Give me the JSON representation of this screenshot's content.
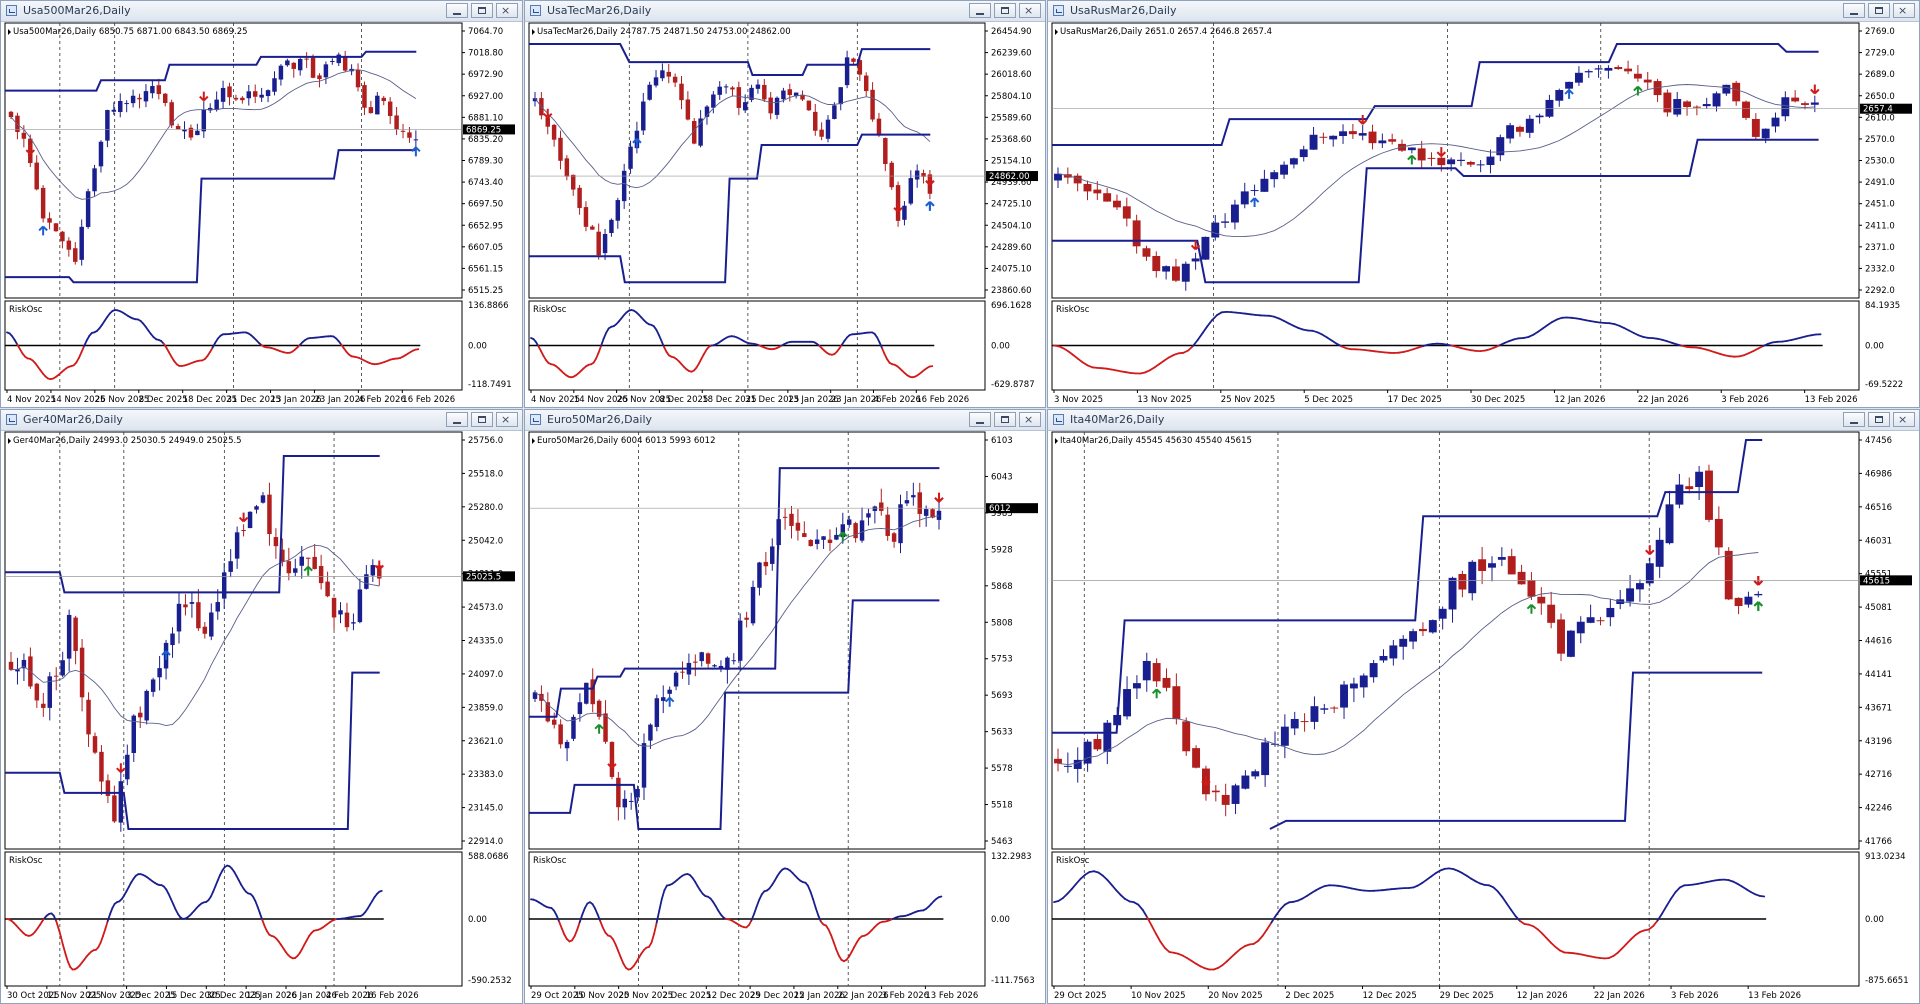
{
  "colors": {
    "bull": "#1a1f8f",
    "bear": "#b01e1e",
    "channel": "#1a1f8f",
    "ma": "#5a5f8a",
    "osc_high": "#1a1f8f",
    "osc_low": "#d11a1a",
    "arrow_up": "#1b5fd1",
    "arrow_up_green": "#1a8f2e",
    "arrow_down": "#d11a1a"
  },
  "icons": [
    "chart-window-icon",
    "minimize-icon",
    "maximize-icon",
    "close-icon"
  ],
  "charts": [
    {
      "window_title": "Usa500Mar26,Daily",
      "info_line": "Usa500Mar26,Daily  6850.75 6871.00 6843.50 6869.25",
      "price_labels": [
        "7064.70",
        "7018.80",
        "6972.90",
        "6927.00",
        "6881.10",
        "6835.20",
        "6789.30",
        "6743.40",
        "6697.50",
        "6652.95",
        "6607.05",
        "6561.15",
        "6515.25"
      ],
      "current_price": "6869.25",
      "osc_label": "RiskOsc",
      "osc_labels": [
        "136.8866",
        "0.00",
        "-118.7491"
      ],
      "dates": [
        "4 Nov 2025",
        "14 Nov 2025",
        "26 Nov 2025",
        "8 Dec 2025",
        "18 Dec 2025",
        "31 Dec 2025",
        "13 Jan 2026",
        "23 Jan 2026",
        "4 Feb 2026",
        "16 Feb 2026"
      ],
      "seed": 11,
      "path": [
        0.68,
        0.55,
        0.3,
        0.18,
        0.1,
        0.45,
        0.68,
        0.75,
        0.73,
        0.78,
        0.62,
        0.58,
        0.7,
        0.78,
        0.72,
        0.76,
        0.8,
        0.86,
        0.88,
        0.83,
        0.89,
        0.86,
        0.66,
        0.76,
        0.58,
        0.6
      ],
      "ch_upper": [
        [
          0,
          0.77
        ],
        [
          0.05,
          0.77
        ],
        [
          0.2,
          0.77
        ],
        [
          0.21,
          0.81
        ],
        [
          0.35,
          0.81
        ],
        [
          0.36,
          0.87
        ],
        [
          0.55,
          0.87
        ],
        [
          0.56,
          0.9
        ],
        [
          0.78,
          0.9
        ],
        [
          0.79,
          0.92
        ],
        [
          0.9,
          0.92
        ]
      ],
      "ch_lower": [
        [
          0,
          0.05
        ],
        [
          0.14,
          0.05
        ],
        [
          0.15,
          0.03
        ],
        [
          0.42,
          0.03
        ],
        [
          0.43,
          0.43
        ],
        [
          0.72,
          0.43
        ],
        [
          0.73,
          0.54
        ],
        [
          0.9,
          0.54
        ]
      ],
      "dashes": [
        0.12,
        0.24,
        0.5,
        0.78
      ],
      "hline": 0.62,
      "osc": [
        0.35,
        -0.35,
        -0.9,
        -0.55,
        0.35,
        0.95,
        0.7,
        0.15,
        -0.55,
        -0.4,
        0.3,
        0.35,
        -0.05,
        -0.2,
        0.2,
        0.25,
        -0.3,
        -0.5,
        -0.35,
        -0.1
      ],
      "arrows": [
        {
          "i": 5,
          "dir": "up"
        },
        {
          "i": 30,
          "dir": "down"
        },
        {
          "i": 79,
          "dir": "up"
        },
        {
          "i": 3,
          "dir": "down"
        }
      ]
    },
    {
      "window_title": "UsaTecMar26,Daily",
      "info_line": "UsaTecMar26,Daily  24787.75 24871.50 24753.00 24862.00",
      "price_labels": [
        "26454.90",
        "26239.60",
        "26018.60",
        "25804.10",
        "25589.60",
        "25368.60",
        "25154.10",
        "24939.60",
        "24725.10",
        "24504.10",
        "24289.60",
        "24075.10",
        "23860.60"
      ],
      "current_price": "24862.00",
      "osc_label": "RiskOsc",
      "osc_labels": [
        "696.1628",
        "0.00",
        "-629.8787"
      ],
      "dates": [
        "4 Nov 2025",
        "14 Nov 2025",
        "26 Nov 2025",
        "8 Dec 2025",
        "18 Dec 2025",
        "31 Dec 2025",
        "13 Jan 2026",
        "23 Jan 2026",
        "4 Feb 2026",
        "16 Feb 2026"
      ],
      "seed": 23,
      "path": [
        0.72,
        0.6,
        0.45,
        0.3,
        0.15,
        0.28,
        0.55,
        0.75,
        0.86,
        0.8,
        0.55,
        0.75,
        0.78,
        0.72,
        0.8,
        0.7,
        0.78,
        0.76,
        0.6,
        0.72,
        0.92,
        0.75,
        0.55,
        0.25,
        0.45,
        0.4
      ],
      "ch_upper": [
        [
          0,
          0.95
        ],
        [
          0.2,
          0.95
        ],
        [
          0.22,
          0.88
        ],
        [
          0.48,
          0.88
        ],
        [
          0.49,
          0.83
        ],
        [
          0.6,
          0.83
        ],
        [
          0.61,
          0.87
        ],
        [
          0.72,
          0.87
        ],
        [
          0.73,
          0.93
        ],
        [
          0.88,
          0.93
        ]
      ],
      "ch_lower": [
        [
          0,
          0.13
        ],
        [
          0.2,
          0.13
        ],
        [
          0.21,
          0.03
        ],
        [
          0.43,
          0.03
        ],
        [
          0.44,
          0.43
        ],
        [
          0.5,
          0.43
        ],
        [
          0.51,
          0.56
        ],
        [
          0.72,
          0.56
        ],
        [
          0.73,
          0.6
        ],
        [
          0.88,
          0.6
        ]
      ],
      "dashes": [
        0.22,
        0.48,
        0.72
      ],
      "hline": 0.44,
      "osc": [
        0.2,
        -0.5,
        -0.85,
        -0.5,
        0.5,
        0.95,
        0.55,
        -0.3,
        -0.7,
        0.0,
        0.25,
        0.05,
        -0.1,
        0.1,
        0.1,
        -0.25,
        0.3,
        0.35,
        -0.5,
        -0.85,
        -0.55
      ],
      "arrows": [
        {
          "i": 2,
          "dir": "down"
        },
        {
          "i": 16,
          "dir": "up"
        },
        {
          "i": 57,
          "dir": "down"
        },
        {
          "i": 70,
          "dir": "up"
        },
        {
          "i": 80,
          "dir": "down"
        },
        {
          "i": 82,
          "dir": "up"
        },
        {
          "i": 90,
          "dir": "down"
        }
      ]
    },
    {
      "window_title": "UsaRusMar26,Daily",
      "info_line": "UsaRusMar26,Daily  2651.0 2657.4 2646.8 2657.4",
      "price_labels": [
        "2769.0",
        "2729.0",
        "2689.0",
        "2650.0",
        "2610.0",
        "2570.0",
        "2530.0",
        "2491.0",
        "2451.0",
        "2411.0",
        "2371.0",
        "2332.0",
        "2292.0"
      ],
      "current_price": "2657.4",
      "osc_label": "RiskOsc",
      "osc_labels": [
        "84.1935",
        "0.00",
        "-69.5222"
      ],
      "dates": [
        "3 Nov 2025",
        "13 Nov 2025",
        "25 Nov 2025",
        "5 Dec 2025",
        "17 Dec 2025",
        "30 Dec 2025",
        "12 Jan 2026",
        "22 Jan 2026",
        "3 Feb 2026",
        "13 Feb 2026"
      ],
      "seed": 37,
      "path": [
        0.42,
        0.38,
        0.3,
        0.12,
        0.05,
        0.22,
        0.35,
        0.45,
        0.55,
        0.62,
        0.6,
        0.58,
        0.52,
        0.5,
        0.5,
        0.62,
        0.7,
        0.8,
        0.88,
        0.84,
        0.7,
        0.72,
        0.78,
        0.6,
        0.73,
        0.75
      ],
      "ch_upper": [
        [
          0,
          0.56
        ],
        [
          0.21,
          0.56
        ],
        [
          0.22,
          0.66
        ],
        [
          0.39,
          0.66
        ],
        [
          0.4,
          0.71
        ],
        [
          0.52,
          0.71
        ],
        [
          0.53,
          0.88
        ],
        [
          0.69,
          0.88
        ],
        [
          0.7,
          0.95
        ],
        [
          0.9,
          0.95
        ],
        [
          0.91,
          0.92
        ],
        [
          0.95,
          0.92
        ]
      ],
      "ch_lower": [
        [
          0,
          0.19
        ],
        [
          0.18,
          0.19
        ],
        [
          0.19,
          0.03
        ],
        [
          0.38,
          0.03
        ],
        [
          0.39,
          0.47
        ],
        [
          0.5,
          0.47
        ],
        [
          0.51,
          0.44
        ],
        [
          0.79,
          0.44
        ],
        [
          0.8,
          0.58
        ],
        [
          0.95,
          0.58
        ]
      ],
      "dashes": [
        0.2,
        0.49,
        0.68
      ],
      "hline": 0.7,
      "osc": [
        0.0,
        -0.6,
        -0.75,
        -0.2,
        0.9,
        0.8,
        0.4,
        -0.1,
        -0.2,
        0.05,
        -0.15,
        0.2,
        0.75,
        0.6,
        0.2,
        -0.05,
        -0.3,
        0.1,
        0.3
      ],
      "arrows": [
        {
          "i": 14,
          "dir": "down"
        },
        {
          "i": 20,
          "dir": "up"
        },
        {
          "i": 31,
          "dir": "down"
        },
        {
          "i": 36,
          "dir": "up_green"
        },
        {
          "i": 39,
          "dir": "down"
        },
        {
          "i": 52,
          "dir": "up"
        },
        {
          "i": 59,
          "dir": "up_green"
        },
        {
          "i": 80,
          "dir": "down"
        }
      ]
    },
    {
      "window_title": "Ger40Mar26,Daily",
      "info_line": "Ger40Mar26,Daily  24993.0 25030.5 24949.0 25025.5",
      "price_labels": [
        "25756.0",
        "25518.0",
        "25280.0",
        "25042.0",
        "24811.0",
        "24573.0",
        "24335.0",
        "24097.0",
        "23859.0",
        "23621.0",
        "23383.0",
        "23145.0",
        "22914.0"
      ],
      "current_price": "25025.5",
      "osc_label": "RiskOsc",
      "osc_labels": [
        "588.0686",
        "0.00",
        "-590.2532"
      ],
      "dates": [
        "30 Oct 2025",
        "11 Nov 2025",
        "21 Nov 2025",
        "3 Dec 2025",
        "15 Dec 2025",
        "30 Dec 2025",
        "13 Jan 2026",
        "26 Jan 2026",
        "4 Feb 2026",
        "16 Feb 2026"
      ],
      "seed": 51,
      "path": [
        0.45,
        0.42,
        0.35,
        0.4,
        0.55,
        0.3,
        0.15,
        0.05,
        0.25,
        0.35,
        0.45,
        0.55,
        0.6,
        0.52,
        0.62,
        0.72,
        0.82,
        0.88,
        0.72,
        0.68,
        0.72,
        0.65,
        0.58,
        0.5,
        0.68,
        0.68
      ],
      "ch_upper": [
        [
          0,
          0.67
        ],
        [
          0.12,
          0.67
        ],
        [
          0.13,
          0.62
        ],
        [
          0.6,
          0.62
        ],
        [
          0.61,
          0.96
        ],
        [
          0.82,
          0.96
        ]
      ],
      "ch_lower": [
        [
          0,
          0.17
        ],
        [
          0.12,
          0.17
        ],
        [
          0.13,
          0.12
        ],
        [
          0.26,
          0.12
        ],
        [
          0.27,
          0.03
        ],
        [
          0.75,
          0.03
        ],
        [
          0.76,
          0.42
        ],
        [
          0.82,
          0.42
        ]
      ],
      "dashes": [
        0.12,
        0.26,
        0.48,
        0.72
      ],
      "hline": 0.66,
      "osc": [
        0.0,
        -0.3,
        0.1,
        -0.9,
        -0.55,
        0.3,
        0.8,
        0.6,
        0.0,
        0.3,
        0.95,
        0.45,
        -0.3,
        -0.7,
        -0.2,
        0.0,
        0.05,
        0.5
      ],
      "arrows": [
        {
          "i": 17,
          "dir": "down"
        },
        {
          "i": 24,
          "dir": "up"
        },
        {
          "i": 36,
          "dir": "down"
        },
        {
          "i": 46,
          "dir": "up_green"
        },
        {
          "i": 60,
          "dir": "down"
        }
      ]
    },
    {
      "window_title": "Euro50Mar26,Daily",
      "info_line": "Euro50Mar26,Daily  6004 6013 5993 6012",
      "price_labels": [
        "6103",
        "6043",
        "5983",
        "5928",
        "5868",
        "5808",
        "5753",
        "5693",
        "5633",
        "5578",
        "5518",
        "5463"
      ],
      "current_price": "6012",
      "osc_label": "RiskOsc",
      "osc_labels": [
        "132.2983",
        "0.00",
        "-111.7563"
      ],
      "dates": [
        "29 Oct 2025",
        "10 Nov 2025",
        "20 Nov 2025",
        "2 Dec 2025",
        "12 Dec 2025",
        "29 Dec 2025",
        "12 Jan 2026",
        "22 Jan 2026",
        "3 Feb 2026",
        "13 Feb 2026"
      ],
      "seed": 67,
      "path": [
        0.35,
        0.3,
        0.25,
        0.4,
        0.28,
        0.12,
        0.08,
        0.3,
        0.38,
        0.42,
        0.44,
        0.46,
        0.45,
        0.55,
        0.68,
        0.78,
        0.82,
        0.72,
        0.76,
        0.8,
        0.78,
        0.86,
        0.74,
        0.88,
        0.83,
        0.82
      ],
      "ch_upper": [
        [
          0,
          0.31
        ],
        [
          0.06,
          0.31
        ],
        [
          0.07,
          0.38
        ],
        [
          0.14,
          0.38
        ],
        [
          0.15,
          0.41
        ],
        [
          0.2,
          0.41
        ],
        [
          0.21,
          0.43
        ],
        [
          0.54,
          0.43
        ],
        [
          0.55,
          0.93
        ],
        [
          0.9,
          0.93
        ]
      ],
      "ch_lower": [
        [
          0,
          0.07
        ],
        [
          0.09,
          0.07
        ],
        [
          0.1,
          0.14
        ],
        [
          0.23,
          0.14
        ],
        [
          0.24,
          0.03
        ],
        [
          0.42,
          0.03
        ],
        [
          0.43,
          0.37
        ],
        [
          0.7,
          0.37
        ],
        [
          0.71,
          0.6
        ],
        [
          0.9,
          0.6
        ]
      ],
      "dashes": [
        0.24,
        0.46,
        0.7
      ],
      "hline": 0.83,
      "osc": [
        0.35,
        0.2,
        -0.4,
        0.3,
        -0.3,
        -0.9,
        -0.5,
        0.6,
        0.8,
        0.4,
        0.0,
        -0.15,
        0.5,
        0.9,
        0.65,
        -0.1,
        -0.75,
        -0.3,
        -0.05,
        0.05,
        0.15,
        0.4
      ],
      "arrows": [
        {
          "i": 10,
          "dir": "up_green"
        },
        {
          "i": 12,
          "dir": "down"
        },
        {
          "i": 21,
          "dir": "up"
        },
        {
          "i": 48,
          "dir": "up_green"
        },
        {
          "i": 63,
          "dir": "down"
        },
        {
          "i": 79,
          "dir": "down"
        }
      ]
    },
    {
      "window_title": "Ita40Mar26,Daily",
      "info_line": "Ita40Mar26,Daily  45545 45630 45540 45615",
      "price_labels": [
        "47456",
        "46986",
        "46516",
        "46031",
        "45551",
        "45081",
        "44616",
        "44141",
        "43671",
        "43196",
        "42716",
        "42246",
        "41766"
      ],
      "current_price": "45615",
      "osc_label": "RiskOsc",
      "osc_labels": [
        "913.0234",
        "0.00",
        "-875.6651"
      ],
      "dates": [
        "29 Oct 2025",
        "10 Nov 2025",
        "20 Nov 2025",
        "2 Dec 2025",
        "12 Dec 2025",
        "29 Dec 2025",
        "12 Jan 2026",
        "22 Jan 2026",
        "3 Feb 2026",
        "13 Feb 2026"
      ],
      "seed": 79,
      "path": [
        0.2,
        0.22,
        0.3,
        0.45,
        0.35,
        0.15,
        0.08,
        0.2,
        0.28,
        0.3,
        0.36,
        0.4,
        0.46,
        0.52,
        0.62,
        0.7,
        0.68,
        0.6,
        0.48,
        0.55,
        0.6,
        0.68,
        0.85,
        0.9,
        0.6,
        0.62
      ],
      "ch_upper": [
        [
          0,
          0.27
        ],
        [
          0.08,
          0.27
        ],
        [
          0.09,
          0.55
        ],
        [
          0.45,
          0.55
        ],
        [
          0.46,
          0.81
        ],
        [
          0.75,
          0.81
        ],
        [
          0.76,
          0.87
        ],
        [
          0.85,
          0.87
        ],
        [
          0.86,
          1.0
        ],
        [
          0.88,
          1.0
        ]
      ],
      "ch_lower": [
        [
          0.27,
          0.03
        ],
        [
          0.29,
          0.05
        ],
        [
          0.71,
          0.05
        ],
        [
          0.72,
          0.42
        ],
        [
          0.88,
          0.42
        ]
      ],
      "dashes": [
        0.04,
        0.28,
        0.48,
        0.74
      ],
      "hline": 0.65,
      "osc": [
        0.3,
        0.85,
        0.3,
        -0.6,
        -0.9,
        -0.45,
        0.3,
        0.6,
        0.5,
        0.55,
        0.9,
        0.6,
        -0.1,
        -0.6,
        -0.7,
        -0.2,
        0.6,
        0.7,
        0.4
      ],
      "arrows": [
        {
          "i": 10,
          "dir": "up_green"
        },
        {
          "i": 15,
          "dir": "down"
        },
        {
          "i": 48,
          "dir": "up_green"
        },
        {
          "i": 60,
          "dir": "down"
        },
        {
          "i": 76,
          "dir": "up_green"
        },
        {
          "i": 78,
          "dir": "down"
        },
        {
          "i": 81,
          "dir": "up_green"
        },
        {
          "i": 87,
          "dir": "down"
        }
      ]
    }
  ]
}
